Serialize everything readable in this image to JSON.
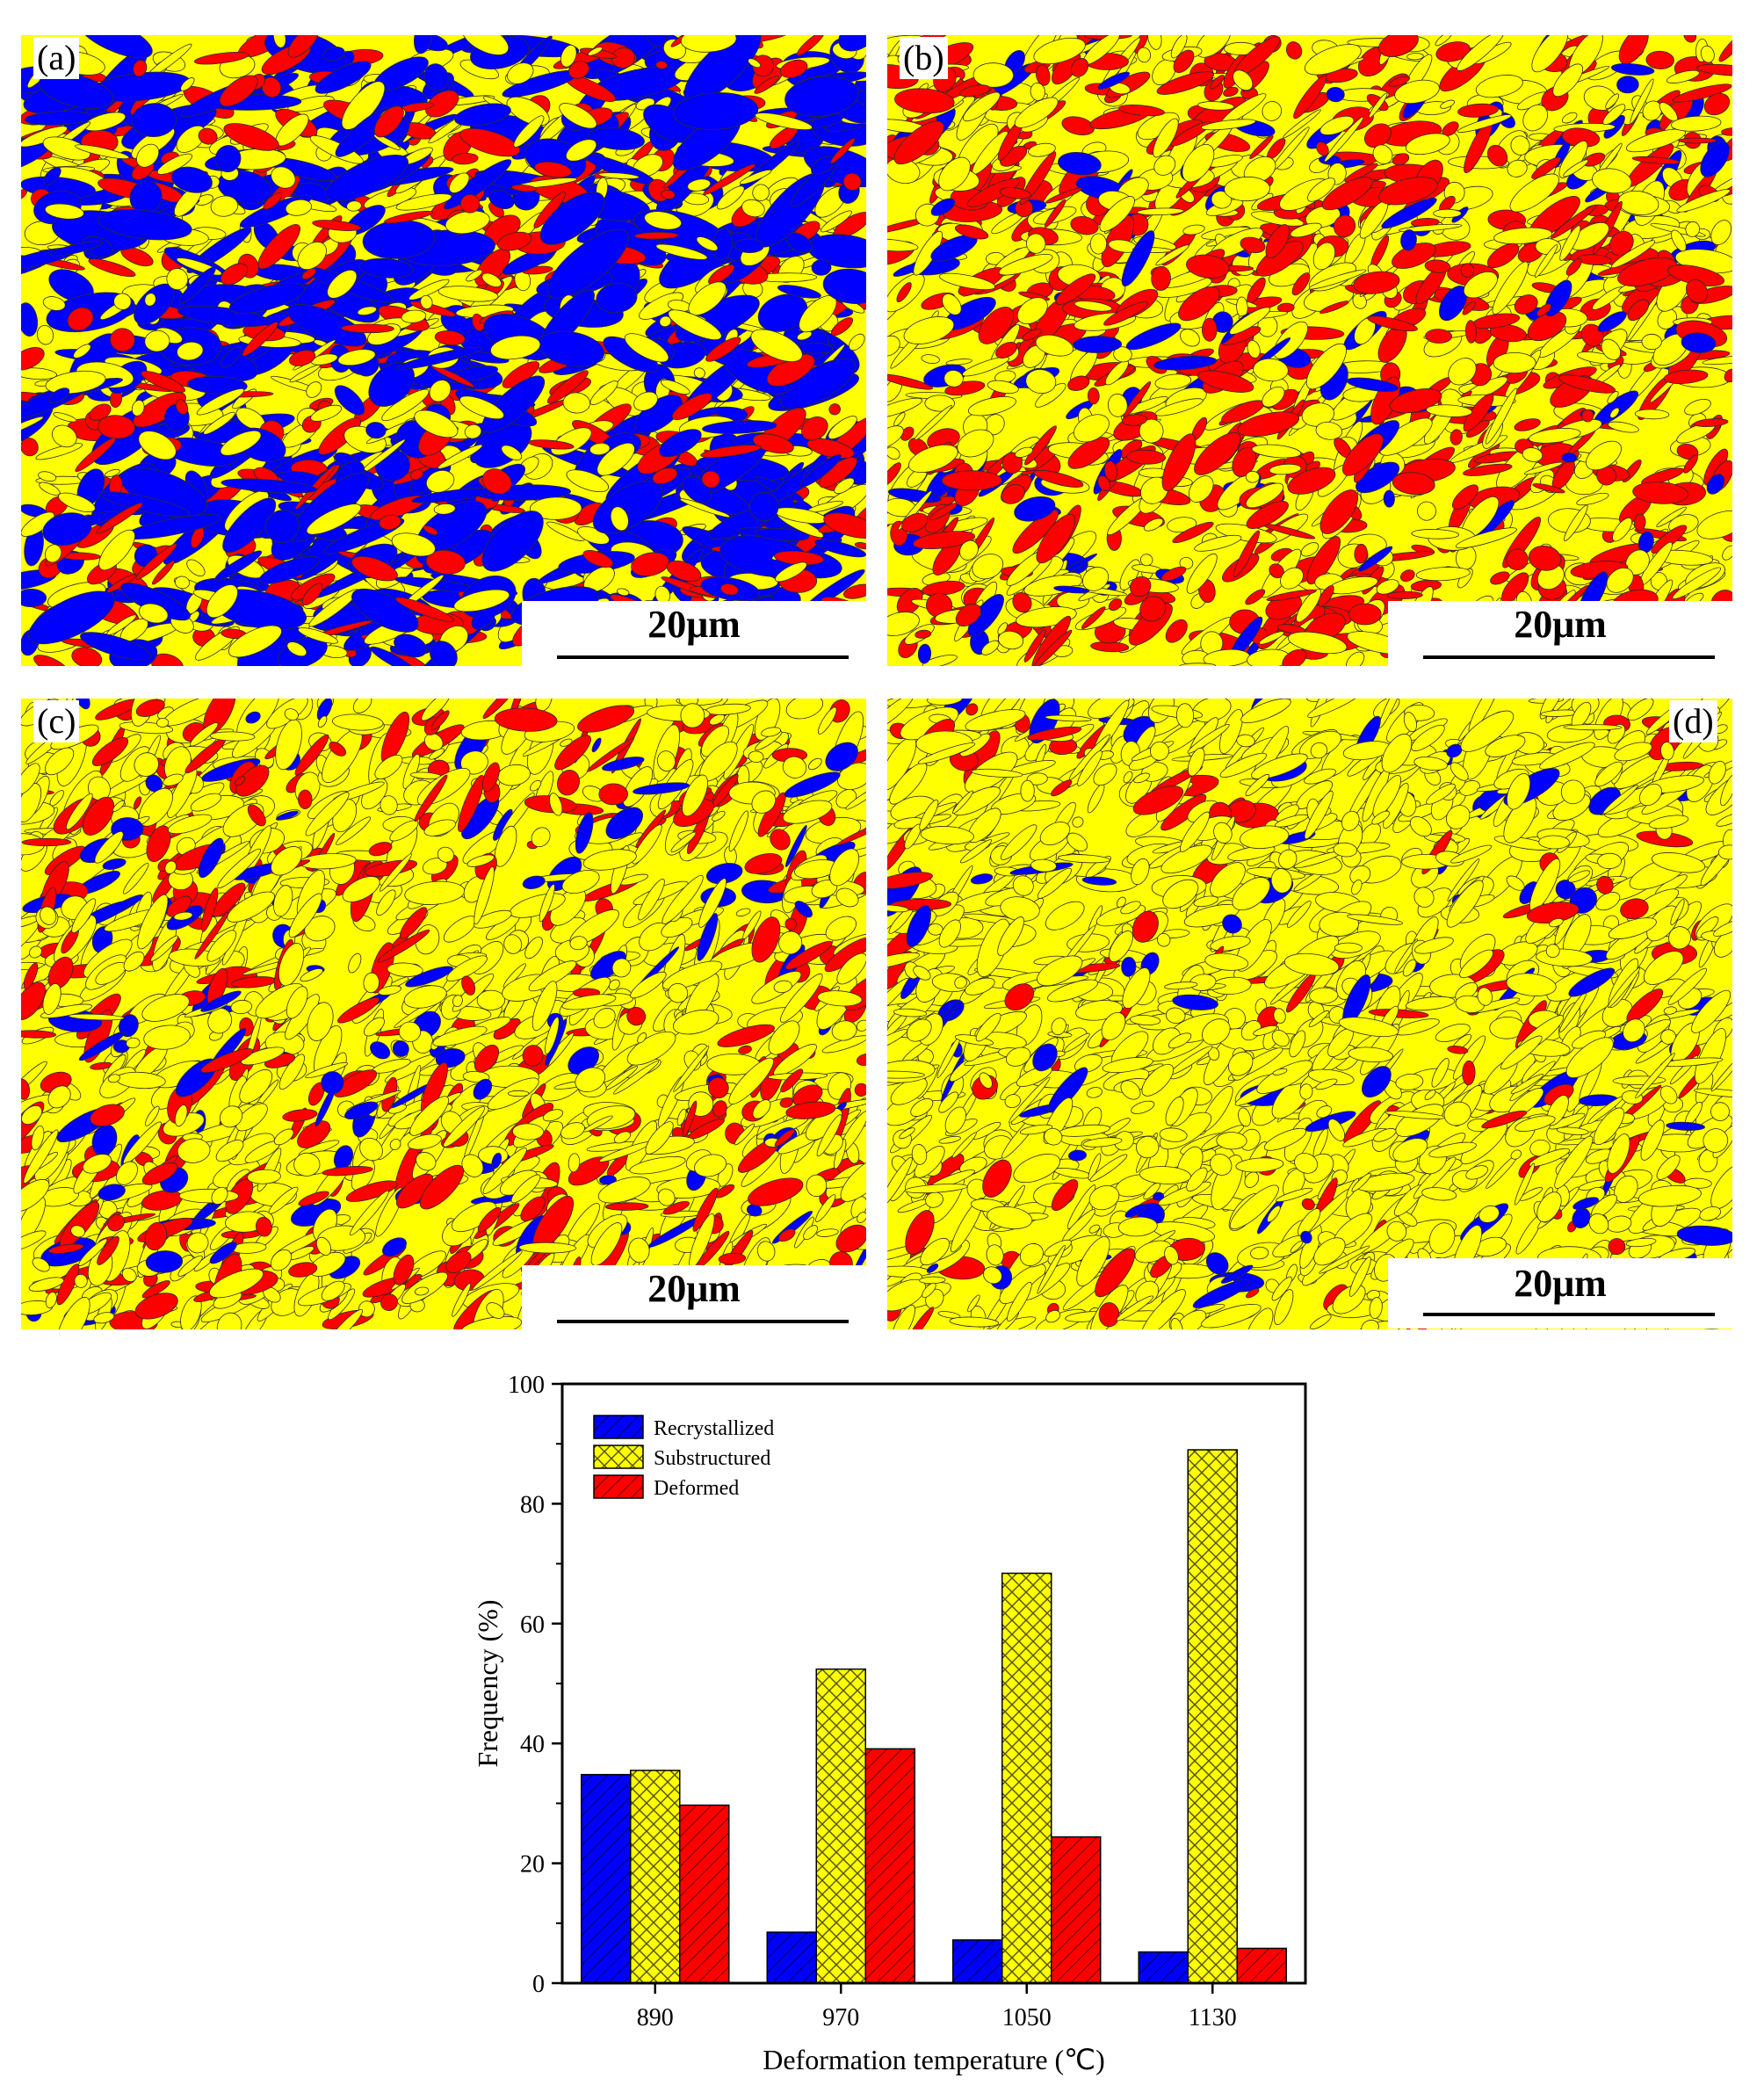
{
  "panels": [
    {
      "label": "(a)",
      "scale": "20μm",
      "recrystallized": 34.8,
      "substructured": 35.5,
      "deformed": 29.7
    },
    {
      "label": "(b)",
      "scale": "20μm",
      "recrystallized": 8.5,
      "substructured": 52.4,
      "deformed": 39.1
    },
    {
      "label": "(c)",
      "scale": "20μm",
      "recrystallized": 7.2,
      "substructured": 68.4,
      "deformed": 24.4
    },
    {
      "label": "(d)",
      "scale": "20μm",
      "recrystallized": 5.2,
      "substructured": 89.0,
      "deformed": 5.8
    }
  ],
  "colors": {
    "recrystallized": "#0000ff",
    "substructured": "#ffff00",
    "deformed": "#ff0000"
  },
  "chart_data": {
    "type": "bar",
    "categories": [
      "890",
      "970",
      "1050",
      "1130"
    ],
    "series": [
      {
        "name": "Recrystallized",
        "color": "#0000ff",
        "pattern": "diagonal",
        "values": [
          34.8,
          8.5,
          7.2,
          5.2
        ]
      },
      {
        "name": "Substructured",
        "color": "#ffff00",
        "pattern": "crosshatch",
        "values": [
          35.5,
          52.4,
          68.4,
          89.0
        ]
      },
      {
        "name": "Deformed",
        "color": "#ff0000",
        "pattern": "diagonal",
        "values": [
          29.7,
          39.1,
          24.4,
          5.8
        ]
      }
    ],
    "title": "",
    "xlabel": "Deformation temperature (℃)",
    "ylabel": "Frequency (%)",
    "ylim": [
      0,
      100
    ],
    "yticks": [
      0,
      20,
      40,
      60,
      80,
      100
    ],
    "legend_position": "top-left",
    "grid": false
  }
}
